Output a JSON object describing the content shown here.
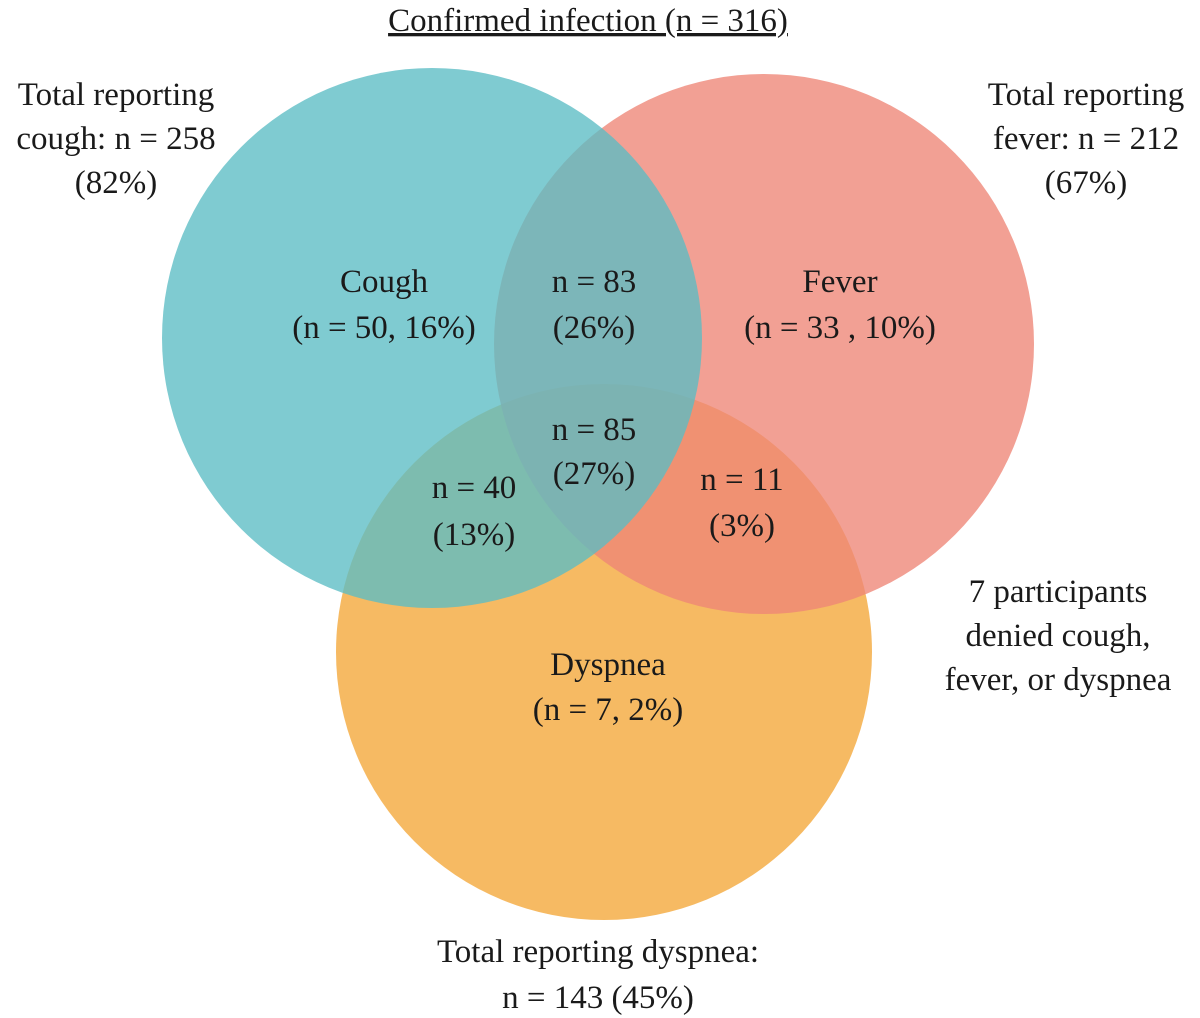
{
  "title": "Confirmed infection (n = 316)",
  "colors": {
    "cough": "#5bbcc4",
    "fever": "#ee8576",
    "dyspnea": "#f5ae48"
  },
  "totals": {
    "cough": {
      "line1": "Total reporting",
      "line2": "cough: n = 258",
      "line3": "(82%)"
    },
    "fever": {
      "line1": "Total reporting",
      "line2": "fever: n = 212",
      "line3": "(67%)"
    },
    "dyspnea": {
      "line1": "Total reporting dyspnea:",
      "line2": "n = 143 (45%)"
    }
  },
  "regions": {
    "cough_only": {
      "label": "Cough",
      "value": "(n = 50, 16%)"
    },
    "fever_only": {
      "label": "Fever",
      "value": "(n = 33 , 10%)"
    },
    "dyspnea_only": {
      "label": "Dyspnea",
      "value": "(n = 7, 2%)"
    },
    "cough_fever": {
      "label": "n = 83",
      "value": "(26%)"
    },
    "all_three": {
      "label": "n = 85",
      "value": "(27%)"
    },
    "cough_dyspnea": {
      "label": "n = 40",
      "value": "(13%)"
    },
    "fever_dyspnea": {
      "label": "n = 11",
      "value": "(3%)"
    }
  },
  "denied_note": {
    "line1": "7 participants",
    "line2": "denied cough,",
    "line3": "fever, or dyspnea"
  }
}
